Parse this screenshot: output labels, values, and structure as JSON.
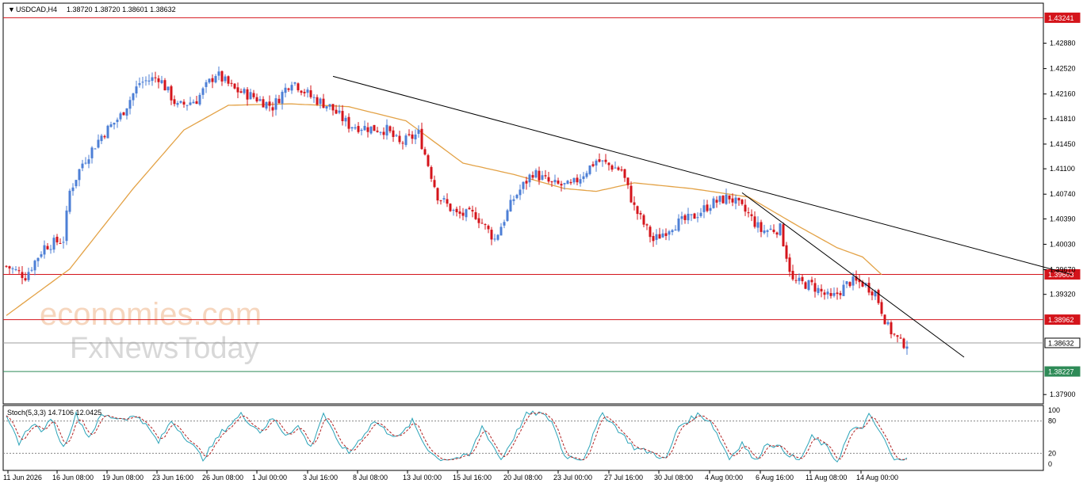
{
  "header": {
    "symbol_label": "USDCAD,H4",
    "ohlc_label": "1.38720 1.38720 1.38601 1.38632",
    "stoch_label": "Stoch(5,3,3) 14.7106 12.0425"
  },
  "watermark": {
    "line1": "economies.com",
    "line2": "FxNewsToday"
  },
  "colors": {
    "bull": "#4d7fd6",
    "bear": "#d4141b",
    "ma": "#e3a246",
    "trend": "#000000",
    "level_red": "#d4141b",
    "level_green": "#2e8b57",
    "price_gray": "#9e9e9e",
    "stoch_main": "#2aa3b8",
    "stoch_signal": "#b22222",
    "tag_top": "#d4141b"
  },
  "chart_data": {
    "type": "candlestick",
    "symbol": "USDCAD",
    "timeframe": "H4",
    "title": "USDCAD,H4",
    "ylim": [
      1.3779,
      1.4338
    ],
    "y_ticks": [
      1.4288,
      1.4252,
      1.4216,
      1.4181,
      1.4145,
      1.411,
      1.4074,
      1.4039,
      1.4003,
      1.3967,
      1.3932,
      1.379
    ],
    "y_tick_labels": [
      "1.42880",
      "1.42520",
      "1.42160",
      "1.41810",
      "1.41450",
      "1.41100",
      "1.40740",
      "1.40390",
      "1.40030",
      "1.39670",
      "1.39320",
      "1.37900"
    ],
    "x_tick_labels": [
      "11 Jun 2026",
      "16 Jun 08:00",
      "19 Jun 08:00",
      "23 Jun 16:00",
      "26 Jun 08:00",
      "1 Jul 00:00",
      "3 Jul 16:00",
      "8 Jul 08:00",
      "13 Jul 00:00",
      "15 Jul 16:00",
      "20 Jul 08:00",
      "23 Jul 00:00",
      "27 Jul 16:00",
      "30 Jul 08:00",
      "4 Aug 00:00",
      "6 Aug 16:00",
      "11 Aug 08:00",
      "14 Aug 00:00"
    ],
    "price_anchors": [
      [
        0,
        1.3972
      ],
      [
        6,
        1.3958
      ],
      [
        12,
        1.4
      ],
      [
        18,
        1.401
      ],
      [
        20,
        1.4078
      ],
      [
        24,
        1.4118
      ],
      [
        30,
        1.4157
      ],
      [
        36,
        1.4185
      ],
      [
        42,
        1.4232
      ],
      [
        48,
        1.424
      ],
      [
        54,
        1.4198
      ],
      [
        60,
        1.4208
      ],
      [
        66,
        1.4245
      ],
      [
        72,
        1.4222
      ],
      [
        78,
        1.4212
      ],
      [
        84,
        1.4198
      ],
      [
        90,
        1.4236
      ],
      [
        96,
        1.4212
      ],
      [
        102,
        1.4198
      ],
      [
        108,
        1.4172
      ],
      [
        114,
        1.4168
      ],
      [
        120,
        1.4165
      ],
      [
        124,
        1.4145
      ],
      [
        130,
        1.416
      ],
      [
        136,
        1.4072
      ],
      [
        142,
        1.4045
      ],
      [
        148,
        1.4045
      ],
      [
        154,
        1.401
      ],
      [
        160,
        1.4068
      ],
      [
        166,
        1.4105
      ],
      [
        172,
        1.4088
      ],
      [
        178,
        1.4085
      ],
      [
        186,
        1.4122
      ],
      [
        194,
        1.4108
      ],
      [
        198,
        1.4055
      ],
      [
        204,
        1.4008
      ],
      [
        210,
        1.403
      ],
      [
        216,
        1.404
      ],
      [
        222,
        1.406
      ],
      [
        228,
        1.407
      ],
      [
        234,
        1.4045
      ],
      [
        238,
        1.4022
      ],
      [
        244,
        1.4025
      ],
      [
        248,
        1.395
      ],
      [
        254,
        1.3945
      ],
      [
        260,
        1.3925
      ],
      [
        266,
        1.395
      ],
      [
        270,
        1.3948
      ],
      [
        274,
        1.3935
      ],
      [
        278,
        1.3885
      ],
      [
        282,
        1.3863
      ]
    ],
    "ma_anchors": [
      [
        0,
        1.3902
      ],
      [
        20,
        1.3968
      ],
      [
        40,
        1.4082
      ],
      [
        56,
        1.4165
      ],
      [
        70,
        1.42
      ],
      [
        90,
        1.4202
      ],
      [
        108,
        1.4198
      ],
      [
        126,
        1.4178
      ],
      [
        144,
        1.4118
      ],
      [
        160,
        1.4102
      ],
      [
        176,
        1.4082
      ],
      [
        186,
        1.4078
      ],
      [
        198,
        1.409
      ],
      [
        216,
        1.4082
      ],
      [
        234,
        1.407
      ],
      [
        250,
        1.4028
      ],
      [
        262,
        1.3998
      ],
      [
        270,
        1.3985
      ],
      [
        276,
        1.396
      ]
    ],
    "stoch_anchors": [
      [
        0,
        85
      ],
      [
        4,
        40
      ],
      [
        8,
        75
      ],
      [
        12,
        60
      ],
      [
        14,
        88
      ],
      [
        18,
        30
      ],
      [
        22,
        92
      ],
      [
        26,
        50
      ],
      [
        30,
        90
      ],
      [
        36,
        85
      ],
      [
        42,
        88
      ],
      [
        48,
        40
      ],
      [
        52,
        80
      ],
      [
        58,
        40
      ],
      [
        62,
        10
      ],
      [
        68,
        60
      ],
      [
        74,
        92
      ],
      [
        80,
        60
      ],
      [
        84,
        85
      ],
      [
        88,
        55
      ],
      [
        92,
        70
      ],
      [
        96,
        30
      ],
      [
        100,
        95
      ],
      [
        104,
        45
      ],
      [
        108,
        20
      ],
      [
        112,
        50
      ],
      [
        116,
        80
      ],
      [
        120,
        60
      ],
      [
        124,
        50
      ],
      [
        128,
        80
      ],
      [
        132,
        35
      ],
      [
        136,
        10
      ],
      [
        140,
        10
      ],
      [
        146,
        15
      ],
      [
        150,
        70
      ],
      [
        156,
        8
      ],
      [
        160,
        50
      ],
      [
        164,
        92
      ],
      [
        168,
        95
      ],
      [
        172,
        80
      ],
      [
        176,
        15
      ],
      [
        182,
        10
      ],
      [
        188,
        95
      ],
      [
        192,
        70
      ],
      [
        198,
        30
      ],
      [
        204,
        20
      ],
      [
        208,
        8
      ],
      [
        212,
        70
      ],
      [
        218,
        92
      ],
      [
        222,
        80
      ],
      [
        228,
        10
      ],
      [
        232,
        40
      ],
      [
        236,
        5
      ],
      [
        240,
        40
      ],
      [
        244,
        30
      ],
      [
        250,
        5
      ],
      [
        254,
        50
      ],
      [
        258,
        35
      ],
      [
        262,
        5
      ],
      [
        266,
        60
      ],
      [
        270,
        70
      ],
      [
        272,
        90
      ],
      [
        276,
        55
      ],
      [
        280,
        5
      ],
      [
        284,
        15
      ]
    ],
    "levels": [
      {
        "price": 1.43241,
        "label": "1.43241",
        "color": "level_red"
      },
      {
        "price": 1.39603,
        "label": "1.39603",
        "color": "level_red"
      },
      {
        "price": 1.38962,
        "label": "1.38962",
        "color": "level_red"
      },
      {
        "price": 1.38632,
        "label": "1.38632",
        "color": "price_gray"
      },
      {
        "price": 1.38227,
        "label": "1.38227",
        "color": "level_green"
      }
    ],
    "trendlines": [
      {
        "from": [
          103,
          1.4241
        ],
        "to": [
          336,
          1.396
        ]
      },
      {
        "from": [
          232,
          1.4076
        ],
        "to": [
          302,
          1.3843
        ]
      }
    ],
    "stoch_levels": [
      80,
      20
    ],
    "stoch_tick_labels": [
      "100",
      "80",
      "20",
      "0"
    ]
  }
}
